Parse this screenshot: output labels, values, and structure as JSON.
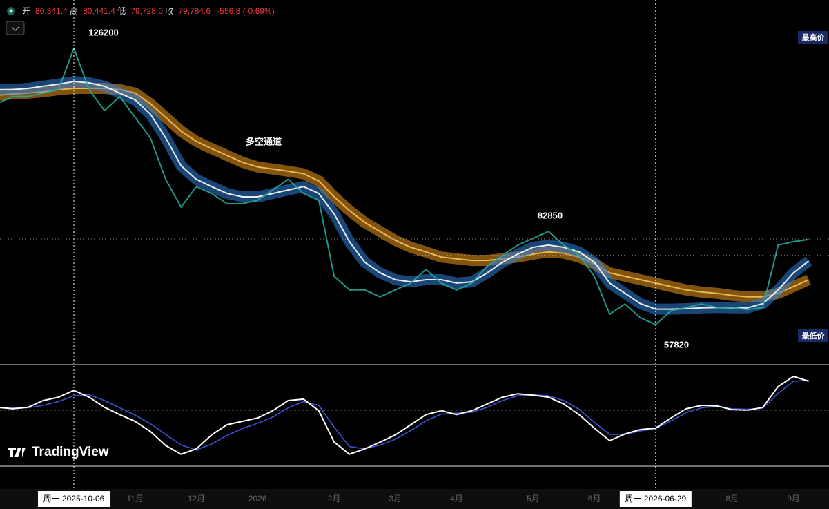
{
  "header": {
    "open_label": "开=",
    "open": "80,341.4",
    "high_label": "高=",
    "high": "80,441.4",
    "low_label": "低=",
    "low": "79,728.0",
    "close_label": "收=",
    "close": "79,784.6",
    "change": "-556.8 (-0.69%)"
  },
  "logo": "TradingView",
  "chart_data": [
    {
      "type": "line",
      "categories": [
        null,
        null,
        null,
        null,
        null,
        "周一 2025-10-06",
        null,
        null,
        null,
        "11月",
        null,
        null,
        null,
        "12月",
        null,
        null,
        null,
        "2026",
        null,
        null,
        null,
        null,
        "2月",
        null,
        null,
        null,
        "3月",
        null,
        null,
        null,
        "4月",
        null,
        null,
        null,
        null,
        "5月",
        null,
        null,
        null,
        "6月",
        null,
        null,
        null,
        "周一 2026-06-29",
        null,
        null,
        null,
        null,
        "8月",
        null,
        null,
        null,
        "9月",
        null
      ],
      "series": [
        {
          "color": "#26a69a",
          "values": [
            111650,
            113300,
            113300,
            114100,
            114900,
            124600,
            114900,
            110000,
            113300,
            108400,
            103600,
            93900,
            87400,
            92200,
            90600,
            88200,
            88200,
            89000,
            91400,
            93900,
            90600,
            89000,
            71200,
            68000,
            68000,
            66400,
            68000,
            69600,
            72800,
            69600,
            68000,
            69600,
            73600,
            76100,
            78500,
            80100,
            81700,
            78500,
            76100,
            71200,
            62300,
            64700,
            61500,
            59900,
            63100,
            63900,
            64700,
            63900,
            63900,
            63400,
            63900,
            78500,
            79300,
            79800
          ]
        },
        {
          "color": "#2f7fd8",
          "values": [
            114900,
            114900,
            115200,
            115700,
            116200,
            116800,
            116500,
            115700,
            114100,
            112500,
            109200,
            103600,
            97100,
            93900,
            92200,
            90600,
            89800,
            89800,
            90600,
            91400,
            92200,
            90600,
            85800,
            79300,
            74500,
            72000,
            70400,
            69900,
            70400,
            70400,
            69600,
            69900,
            72000,
            74500,
            76400,
            78000,
            78500,
            78000,
            76900,
            74500,
            69600,
            67200,
            64800,
            63500,
            63500,
            63600,
            63800,
            63900,
            63800,
            63800,
            64800,
            68000,
            72000,
            74800
          ]
        },
        {
          "color": "#d98c1a",
          "values": [
            113600,
            113900,
            114100,
            114400,
            114900,
            115200,
            115200,
            115200,
            114900,
            114100,
            111600,
            108400,
            105200,
            102800,
            101100,
            99500,
            97900,
            96800,
            96300,
            95800,
            95200,
            93500,
            89800,
            86600,
            83800,
            81700,
            79600,
            78000,
            76900,
            75700,
            75300,
            74900,
            74900,
            75300,
            75700,
            76400,
            76900,
            76600,
            75700,
            74100,
            72000,
            71200,
            70400,
            69600,
            68800,
            68000,
            67500,
            67200,
            66700,
            66400,
            66400,
            67200,
            68800,
            70400
          ]
        }
      ],
      "ylim": [
        50500,
        135900
      ],
      "annotations": [
        "126200",
        "多空通道",
        "82850",
        "57820"
      ],
      "high_label": "最高价",
      "low_label": "最低价"
    },
    {
      "type": "line",
      "series": [
        {
          "color": "#ffffff",
          "values": [
            0.06,
            0.03,
            0.06,
            0.2,
            0.27,
            0.41,
            0.27,
            0.06,
            -0.09,
            -0.23,
            -0.44,
            -0.73,
            -0.91,
            -0.8,
            -0.51,
            -0.3,
            -0.23,
            -0.16,
            -0.01,
            0.2,
            0.23,
            -0.01,
            -0.66,
            -0.91,
            -0.8,
            -0.66,
            -0.51,
            -0.3,
            -0.09,
            -0.01,
            -0.09,
            -0.01,
            0.13,
            0.27,
            0.34,
            0.31,
            0.27,
            0.13,
            -0.09,
            -0.37,
            -0.63,
            -0.49,
            -0.4,
            -0.37,
            -0.16,
            0.03,
            0.1,
            0.09,
            0.01,
            0,
            0.06,
            0.49,
            0.7,
            0.6
          ]
        },
        {
          "color": "#3f51d6",
          "values": [
            0.05,
            0.05,
            0.05,
            0.1,
            0.18,
            0.3,
            0.32,
            0.2,
            0.05,
            -0.1,
            -0.28,
            -0.5,
            -0.72,
            -0.82,
            -0.7,
            -0.52,
            -0.38,
            -0.27,
            -0.14,
            0.05,
            0.18,
            0.1,
            -0.35,
            -0.75,
            -0.8,
            -0.72,
            -0.6,
            -0.42,
            -0.22,
            -0.08,
            -0.06,
            -0.04,
            0.06,
            0.2,
            0.3,
            0.32,
            0.3,
            0.2,
            0.02,
            -0.25,
            -0.5,
            -0.5,
            -0.43,
            -0.38,
            -0.22,
            -0.05,
            0.05,
            0.08,
            0.03,
            0.02,
            0.04,
            0.35,
            0.6,
            0.62
          ]
        }
      ],
      "ylim": [
        -1,
        1
      ]
    }
  ]
}
